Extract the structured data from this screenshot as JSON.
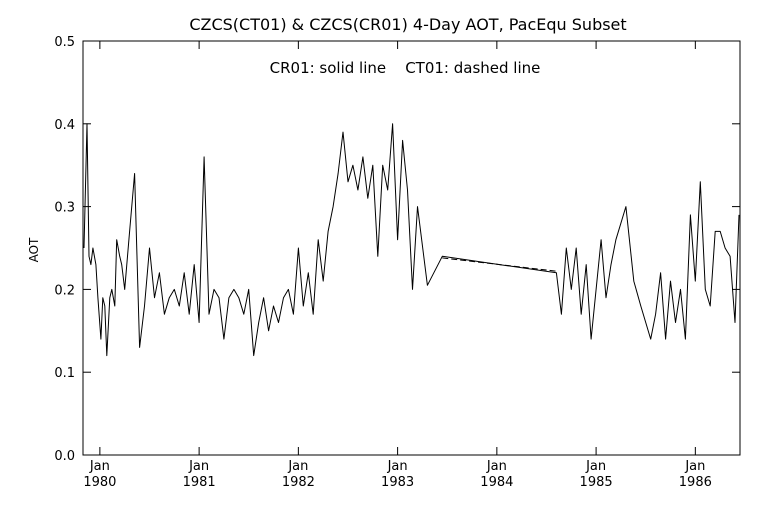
{
  "chart_data": {
    "type": "line",
    "title": "CZCS(CT01) & CZCS(CR01) 4-Day AOT, PacEqu Subset",
    "annotation": "CR01: solid line    CT01: dashed line",
    "ylabel": "AOT",
    "xlabel": "",
    "xlim": [
      1979.83,
      1986.45
    ],
    "ylim": [
      0.0,
      0.5
    ],
    "yticks": [
      "0.0",
      "0.1",
      "0.2",
      "0.3",
      "0.4",
      "0.5"
    ],
    "xticks": [
      {
        "month": "Jan",
        "year": "1980",
        "x": 1980.0
      },
      {
        "month": "Jan",
        "year": "1981",
        "x": 1981.0
      },
      {
        "month": "Jan",
        "year": "1982",
        "x": 1982.0
      },
      {
        "month": "Jan",
        "year": "1983",
        "x": 1983.0
      },
      {
        "month": "Jan",
        "year": "1984",
        "x": 1984.0
      },
      {
        "month": "Jan",
        "year": "1985",
        "x": 1985.0
      },
      {
        "month": "Jan",
        "year": "1986",
        "x": 1986.0
      }
    ],
    "grid": false,
    "series": [
      {
        "name": "CR01",
        "style": "solid",
        "color": "#000000",
        "x": [
          1979.84,
          1979.87,
          1979.89,
          1979.91,
          1979.93,
          1979.96,
          1979.98,
          1980.01,
          1980.03,
          1980.05,
          1980.07,
          1980.1,
          1980.12,
          1980.15,
          1980.17,
          1980.2,
          1980.22,
          1980.25,
          1980.3,
          1980.35,
          1980.4,
          1980.45,
          1980.5,
          1980.55,
          1980.6,
          1980.65,
          1980.7,
          1980.75,
          1980.8,
          1980.85,
          1980.9,
          1980.95,
          1981.0,
          1981.05,
          1981.1,
          1981.15,
          1981.2,
          1981.25,
          1981.3,
          1981.35,
          1981.4,
          1981.45,
          1981.5,
          1981.55,
          1981.6,
          1981.65,
          1981.7,
          1981.75,
          1981.8,
          1981.85,
          1981.9,
          1981.95,
          1982.0,
          1982.05,
          1982.1,
          1982.15,
          1982.2,
          1982.25,
          1982.3,
          1982.35,
          1982.4,
          1982.45,
          1982.5,
          1982.55,
          1982.6,
          1982.65,
          1982.7,
          1982.75,
          1982.8,
          1982.85,
          1982.9,
          1982.95,
          1983.0,
          1983.05,
          1983.1,
          1983.15,
          1983.2,
          1983.3,
          1983.45,
          1984.6,
          1984.65,
          1984.7,
          1984.75,
          1984.8,
          1984.85,
          1984.9,
          1984.95,
          1985.0,
          1985.05,
          1985.1,
          1985.15,
          1985.2,
          1985.3,
          1985.38,
          1985.45,
          1985.55,
          1985.6,
          1985.65,
          1985.7,
          1985.75,
          1985.8,
          1985.85,
          1985.9,
          1985.95,
          1986.0,
          1986.05,
          1986.1,
          1986.15,
          1986.2,
          1986.25,
          1986.3,
          1986.35,
          1986.4,
          1986.44
        ],
        "y": [
          0.25,
          0.4,
          0.24,
          0.23,
          0.25,
          0.23,
          0.19,
          0.14,
          0.19,
          0.18,
          0.12,
          0.19,
          0.2,
          0.18,
          0.26,
          0.24,
          0.23,
          0.2,
          0.27,
          0.34,
          0.13,
          0.18,
          0.25,
          0.19,
          0.22,
          0.17,
          0.19,
          0.2,
          0.18,
          0.22,
          0.17,
          0.23,
          0.16,
          0.36,
          0.17,
          0.2,
          0.19,
          0.14,
          0.19,
          0.2,
          0.19,
          0.17,
          0.2,
          0.12,
          0.16,
          0.19,
          0.15,
          0.18,
          0.16,
          0.19,
          0.2,
          0.17,
          0.25,
          0.18,
          0.22,
          0.17,
          0.26,
          0.21,
          0.27,
          0.3,
          0.34,
          0.39,
          0.33,
          0.35,
          0.32,
          0.36,
          0.31,
          0.35,
          0.24,
          0.35,
          0.32,
          0.4,
          0.26,
          0.38,
          0.32,
          0.2,
          0.3,
          0.205,
          0.24,
          0.22,
          0.17,
          0.25,
          0.2,
          0.25,
          0.17,
          0.23,
          0.14,
          0.2,
          0.26,
          0.19,
          0.23,
          0.26,
          0.3,
          0.21,
          0.18,
          0.14,
          0.17,
          0.22,
          0.14,
          0.21,
          0.16,
          0.2,
          0.14,
          0.29,
          0.21,
          0.33,
          0.2,
          0.18,
          0.27,
          0.27,
          0.25,
          0.24,
          0.16,
          0.29
        ]
      },
      {
        "name": "CT01",
        "style": "dashed",
        "color": "#000000",
        "x": [
          1983.45,
          1984.6
        ],
        "y": [
          0.238,
          0.222
        ]
      }
    ]
  }
}
